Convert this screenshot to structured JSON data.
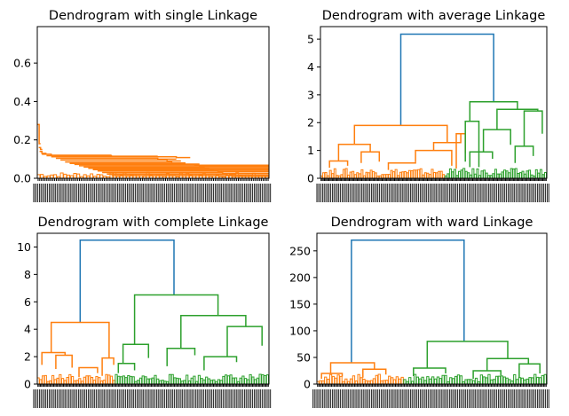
{
  "chart_data": [
    {
      "type": "dendrogram",
      "title": "Dendrogram with single Linkage",
      "ylim": [
        0,
        0.79
      ],
      "yticks": [
        0.0,
        0.2,
        0.4,
        0.6
      ],
      "ytick_labels": [
        "0.0",
        "0.2",
        "0.4",
        "0.6"
      ],
      "xlim": [
        0,
        1000
      ],
      "colors": {
        "cluster_a": "#ff7f0e"
      },
      "links": [
        {
          "x": [
            0,
            8,
            8,
            14
          ],
          "y": [
            0.28,
            0.28,
            0.18,
            0.18
          ],
          "color": "#ff7f0e"
        },
        {
          "x": [
            6,
            14,
            14,
            22
          ],
          "y": [
            0.16,
            0.16,
            0.15,
            0.15
          ],
          "color": "#ff7f0e"
        },
        {
          "x": [
            10,
            20,
            20,
            40
          ],
          "y": [
            0.14,
            0.14,
            0.13,
            0.13
          ],
          "color": "#ff7f0e"
        },
        {
          "x": [
            20,
            60,
            60,
            320
          ],
          "y": [
            0.125,
            0.125,
            0.12,
            0.12
          ],
          "color": "#ff7f0e"
        },
        {
          "x": [
            40,
            320,
            320,
            520
          ],
          "y": [
            0.118,
            0.118,
            0.115,
            0.115
          ],
          "color": "#ff7f0e"
        },
        {
          "x": [
            60,
            600,
            600,
            660
          ],
          "y": [
            0.112,
            0.112,
            0.108,
            0.108
          ],
          "color": "#ff7f0e"
        },
        {
          "x": [
            80,
            520,
            520,
            600
          ],
          "y": [
            0.104,
            0.104,
            0.1,
            0.1
          ],
          "color": "#ff7f0e"
        },
        {
          "x": [
            100,
            560,
            560,
            620
          ],
          "y": [
            0.095,
            0.095,
            0.09,
            0.09
          ],
          "color": "#ff7f0e"
        },
        {
          "x": [
            120,
            580,
            580,
            640
          ],
          "y": [
            0.085,
            0.085,
            0.08,
            0.08
          ],
          "color": "#ff7f0e"
        },
        {
          "x": [
            140,
            610,
            610,
            700
          ],
          "y": [
            0.077,
            0.077,
            0.074,
            0.074
          ],
          "color": "#ff7f0e"
        },
        {
          "x": [
            160,
            680,
            680,
            1000
          ],
          "y": [
            0.072,
            0.072,
            0.068,
            0.068
          ],
          "color": "#ff7f0e"
        },
        {
          "x": [
            180,
            700,
            700,
            1000
          ],
          "y": [
            0.065,
            0.065,
            0.062,
            0.062
          ],
          "color": "#ff7f0e"
        },
        {
          "x": [
            200,
            720,
            720,
            1000
          ],
          "y": [
            0.058,
            0.058,
            0.055,
            0.055
          ],
          "color": "#ff7f0e"
        },
        {
          "x": [
            220,
            740,
            740,
            1000
          ],
          "y": [
            0.052,
            0.052,
            0.048,
            0.048
          ],
          "color": "#ff7f0e"
        },
        {
          "x": [
            240,
            760,
            760,
            1000
          ],
          "y": [
            0.045,
            0.045,
            0.042,
            0.042
          ],
          "color": "#ff7f0e"
        },
        {
          "x": [
            260,
            780,
            780,
            1000
          ],
          "y": [
            0.038,
            0.038,
            0.035,
            0.035
          ],
          "color": "#ff7f0e"
        },
        {
          "x": [
            280,
            800,
            800,
            1000
          ],
          "y": [
            0.03,
            0.03,
            0.026,
            0.026
          ],
          "color": "#ff7f0e"
        },
        {
          "x": [
            300,
            820,
            820,
            1000
          ],
          "y": [
            0.022,
            0.022,
            0.018,
            0.018
          ],
          "color": "#ff7f0e"
        },
        {
          "x": [
            320,
            840,
            840,
            1000
          ],
          "y": [
            0.014,
            0.014,
            0.01,
            0.01
          ],
          "color": "#ff7f0e"
        }
      ]
    },
    {
      "type": "dendrogram",
      "title": "Dendrogram with average Linkage",
      "ylim": [
        0,
        5.45
      ],
      "yticks": [
        0,
        1,
        2,
        3,
        4,
        5
      ],
      "ytick_labels": [
        "0",
        "1",
        "2",
        "3",
        "4",
        "5"
      ],
      "xlim": [
        0,
        1000
      ],
      "colors": {
        "root": "#1f77b4",
        "cluster_a": "#ff7f0e",
        "cluster_b": "#2ca02c"
      },
      "links": [
        {
          "x": [
            355,
            355,
            765,
            765
          ],
          "y": [
            1.9,
            5.18,
            5.18,
            2.75
          ],
          "color": "#1f77b4"
        },
        {
          "x": [
            150,
            150,
            560,
            560
          ],
          "y": [
            1.22,
            1.9,
            1.9,
            1.28
          ],
          "color": "#ff7f0e"
        },
        {
          "x": [
            80,
            80,
            220,
            220
          ],
          "y": [
            0.62,
            1.22,
            1.22,
            0.95
          ],
          "color": "#ff7f0e"
        },
        {
          "x": [
            40,
            40,
            120,
            120
          ],
          "y": [
            0.38,
            0.62,
            0.62,
            0.45
          ],
          "color": "#ff7f0e"
        },
        {
          "x": [
            180,
            180,
            260,
            260
          ],
          "y": [
            0.55,
            0.95,
            0.95,
            0.6
          ],
          "color": "#ff7f0e"
        },
        {
          "x": [
            500,
            500,
            620,
            620
          ],
          "y": [
            1.0,
            1.28,
            1.28,
            1.6
          ],
          "color": "#ff7f0e"
        },
        {
          "x": [
            420,
            420,
            580,
            580
          ],
          "y": [
            0.6,
            1.0,
            1.0,
            0.45
          ],
          "color": "#ff7f0e"
        },
        {
          "x": [
            300,
            300,
            420,
            420
          ],
          "y": [
            0.3,
            0.55,
            0.55,
            0.6
          ],
          "color": "#ff7f0e"
        },
        {
          "x": [
            600,
            600,
            640,
            640
          ],
          "y": [
            0.35,
            1.6,
            1.6,
            0.9
          ],
          "color": "#ff7f0e"
        },
        {
          "x": [
            660,
            660,
            870,
            870
          ],
          "y": [
            2.05,
            2.75,
            2.75,
            2.48
          ],
          "color": "#2ca02c"
        },
        {
          "x": [
            640,
            640,
            700,
            700
          ],
          "y": [
            0.6,
            2.05,
            2.05,
            0.4
          ],
          "color": "#2ca02c"
        },
        {
          "x": [
            780,
            780,
            960,
            960
          ],
          "y": [
            1.75,
            2.48,
            2.48,
            2.42
          ],
          "color": "#2ca02c"
        },
        {
          "x": [
            720,
            720,
            840,
            840
          ],
          "y": [
            0.95,
            1.75,
            1.75,
            1.2
          ],
          "color": "#2ca02c"
        },
        {
          "x": [
            900,
            900,
            980,
            980
          ],
          "y": [
            1.15,
            2.42,
            2.42,
            1.6
          ],
          "color": "#2ca02c"
        },
        {
          "x": [
            660,
            660,
            760,
            760
          ],
          "y": [
            0.4,
            0.95,
            0.95,
            0.7
          ],
          "color": "#2ca02c"
        },
        {
          "x": [
            860,
            860,
            940,
            940
          ],
          "y": [
            0.55,
            1.15,
            1.15,
            0.8
          ],
          "color": "#2ca02c"
        }
      ]
    },
    {
      "type": "dendrogram",
      "title": "Dendrogram with complete Linkage",
      "ylim": [
        0,
        11.0
      ],
      "yticks": [
        0,
        2,
        4,
        6,
        8,
        10
      ],
      "ytick_labels": [
        "0",
        "2",
        "4",
        "6",
        "8",
        "10"
      ],
      "xlim": [
        0,
        1000
      ],
      "colors": {
        "root": "#1f77b4",
        "cluster_a": "#ff7f0e",
        "cluster_b": "#2ca02c"
      },
      "links": [
        {
          "x": [
            185,
            185,
            590,
            590
          ],
          "y": [
            4.5,
            10.5,
            10.5,
            6.5
          ],
          "color": "#1f77b4"
        },
        {
          "x": [
            60,
            60,
            310,
            310
          ],
          "y": [
            2.3,
            4.5,
            4.5,
            1.9
          ],
          "color": "#ff7f0e"
        },
        {
          "x": [
            20,
            20,
            120,
            120
          ],
          "y": [
            1.4,
            2.3,
            2.3,
            2.1
          ],
          "color": "#ff7f0e"
        },
        {
          "x": [
            80,
            80,
            150,
            150
          ],
          "y": [
            1.1,
            2.1,
            2.1,
            1.2
          ],
          "color": "#ff7f0e"
        },
        {
          "x": [
            280,
            280,
            330,
            330
          ],
          "y": [
            0.6,
            1.9,
            1.9,
            1.4
          ],
          "color": "#ff7f0e"
        },
        {
          "x": [
            180,
            180,
            260,
            260
          ],
          "y": [
            0.5,
            1.2,
            1.2,
            0.8
          ],
          "color": "#ff7f0e"
        },
        {
          "x": [
            420,
            420,
            780,
            780
          ],
          "y": [
            2.9,
            6.5,
            6.5,
            5.0
          ],
          "color": "#2ca02c"
        },
        {
          "x": [
            370,
            370,
            480,
            480
          ],
          "y": [
            1.5,
            2.9,
            2.9,
            1.9
          ],
          "color": "#2ca02c"
        },
        {
          "x": [
            620,
            620,
            900,
            900
          ],
          "y": [
            2.6,
            5.0,
            5.0,
            4.2
          ],
          "color": "#2ca02c"
        },
        {
          "x": [
            560,
            560,
            680,
            680
          ],
          "y": [
            1.3,
            2.6,
            2.6,
            2.1
          ],
          "color": "#2ca02c"
        },
        {
          "x": [
            820,
            820,
            970,
            970
          ],
          "y": [
            2.0,
            4.2,
            4.2,
            2.8
          ],
          "color": "#2ca02c"
        },
        {
          "x": [
            350,
            350,
            420,
            420
          ],
          "y": [
            0.8,
            1.5,
            1.5,
            1.0
          ],
          "color": "#2ca02c"
        },
        {
          "x": [
            720,
            720,
            860,
            860
          ],
          "y": [
            1.0,
            2.0,
            2.0,
            1.6
          ],
          "color": "#2ca02c"
        }
      ]
    },
    {
      "type": "dendrogram",
      "title": "Dendrogram with ward Linkage",
      "ylim": [
        0,
        283
      ],
      "yticks": [
        0,
        50,
        100,
        150,
        200,
        250
      ],
      "ytick_labels": [
        "0",
        "50",
        "100",
        "150",
        "200",
        "250"
      ],
      "xlim": [
        0,
        1000
      ],
      "colors": {
        "root": "#1f77b4",
        "cluster_a": "#ff7f0e",
        "cluster_b": "#2ca02c"
      },
      "links": [
        {
          "x": [
            150,
            150,
            640,
            640
          ],
          "y": [
            40,
            270,
            270,
            80
          ],
          "color": "#1f77b4"
        },
        {
          "x": [
            60,
            60,
            250,
            250
          ],
          "y": [
            20,
            40,
            40,
            28
          ],
          "color": "#ff7f0e"
        },
        {
          "x": [
            20,
            20,
            110,
            110
          ],
          "y": [
            10,
            20,
            20,
            14
          ],
          "color": "#ff7f0e"
        },
        {
          "x": [
            200,
            200,
            300,
            300
          ],
          "y": [
            12,
            28,
            28,
            18
          ],
          "color": "#ff7f0e"
        },
        {
          "x": [
            480,
            480,
            830,
            830
          ],
          "y": [
            30,
            80,
            80,
            48
          ],
          "color": "#2ca02c"
        },
        {
          "x": [
            420,
            420,
            560,
            560
          ],
          "y": [
            15,
            30,
            30,
            20
          ],
          "color": "#2ca02c"
        },
        {
          "x": [
            740,
            740,
            920,
            920
          ],
          "y": [
            25,
            48,
            48,
            38
          ],
          "color": "#2ca02c"
        },
        {
          "x": [
            680,
            680,
            800,
            800
          ],
          "y": [
            10,
            25,
            25,
            16
          ],
          "color": "#2ca02c"
        },
        {
          "x": [
            880,
            880,
            970,
            970
          ],
          "y": [
            12,
            38,
            38,
            20
          ],
          "color": "#2ca02c"
        }
      ]
    }
  ]
}
